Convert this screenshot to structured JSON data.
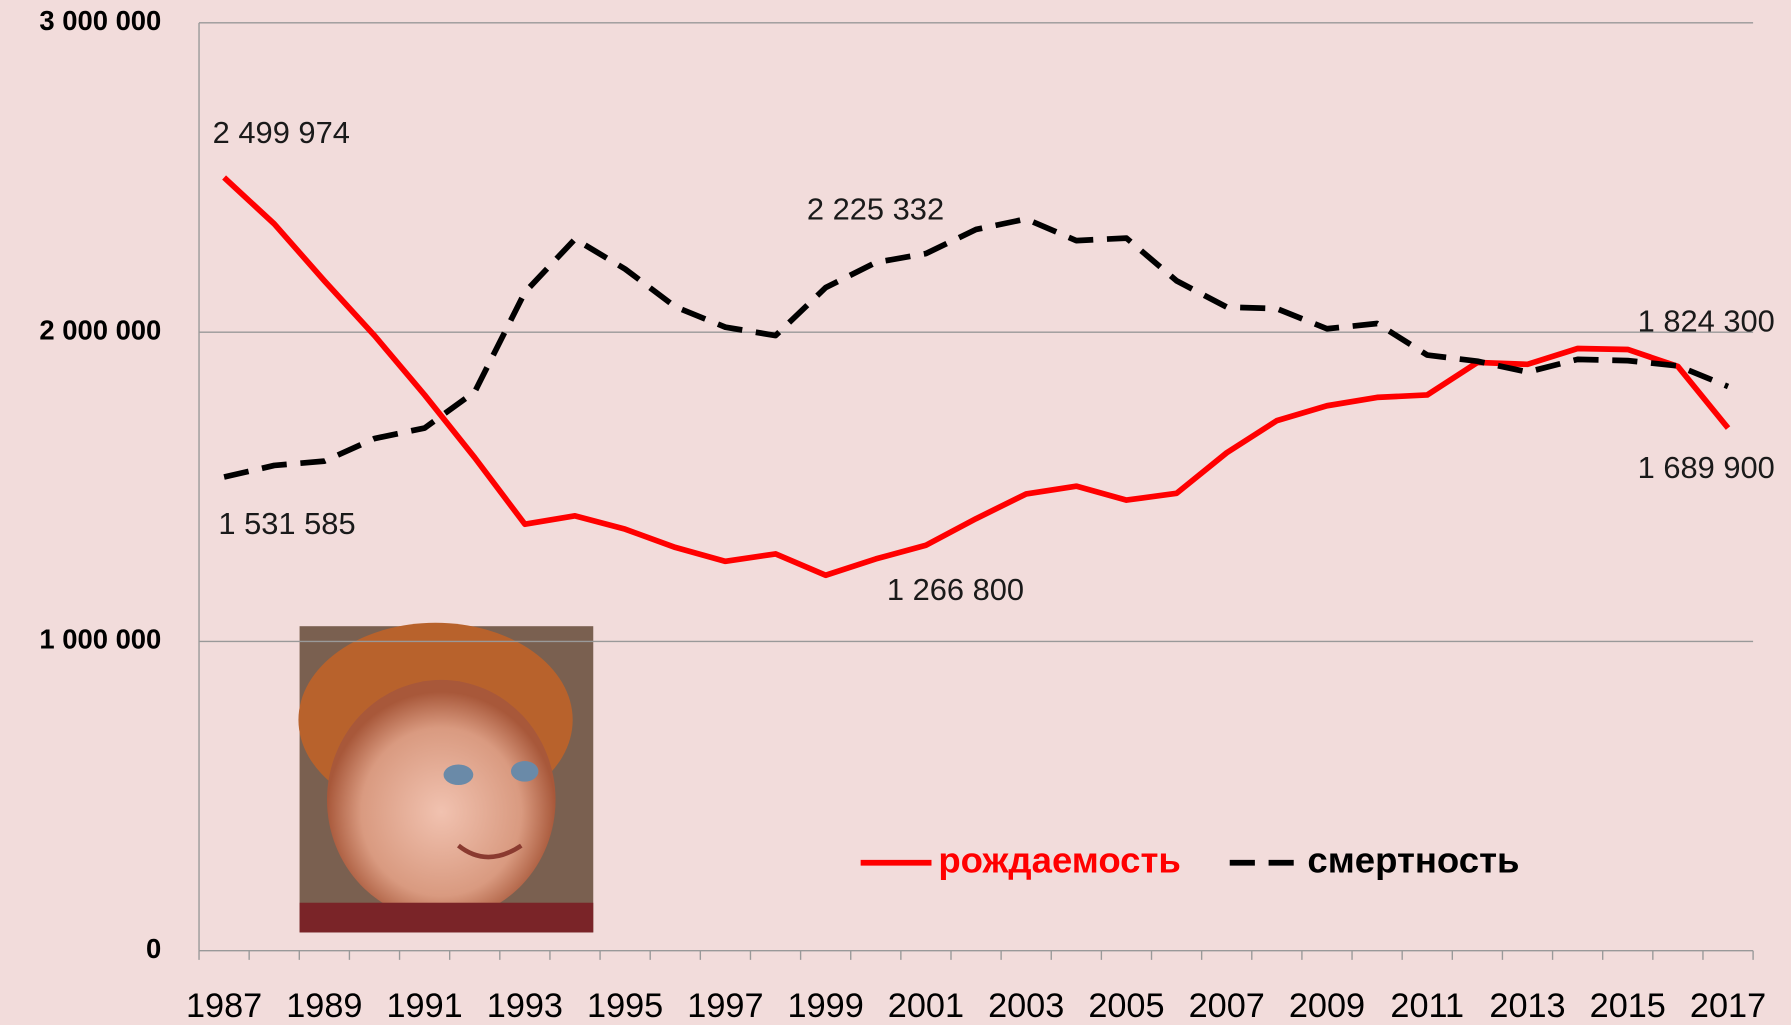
{
  "chart_data": {
    "type": "line",
    "categories": [
      "1987",
      null,
      "1989",
      null,
      "1991",
      null,
      "1993",
      null,
      "1995",
      null,
      "1997",
      null,
      "1999",
      null,
      "2001",
      null,
      "2003",
      null,
      "2005",
      null,
      "2007",
      null,
      "2009",
      null,
      "2011",
      null,
      "2013",
      null,
      "2015",
      null,
      "2017"
    ],
    "series": [
      {
        "name": "рождаемость",
        "color": "#ff0000",
        "dashed": false,
        "values": [
          2499974,
          2350000,
          2166000,
          1989000,
          1797000,
          1594000,
          1379000,
          1406000,
          1363000,
          1304000,
          1259000,
          1283000,
          1214000,
          1266800,
          1311000,
          1397000,
          1477000,
          1502000,
          1457000,
          1479000,
          1610000,
          1714000,
          1762000,
          1789000,
          1797000,
          1902000,
          1896000,
          1947000,
          1944000,
          1889000,
          1689900
        ],
        "value_labels": [
          "2 499 974",
          null,
          null,
          null,
          null,
          null,
          null,
          null,
          null,
          null,
          null,
          null,
          null,
          "1 266 800",
          null,
          null,
          null,
          null,
          null,
          null,
          null,
          null,
          null,
          null,
          null,
          null,
          null,
          null,
          null,
          null,
          "1 689 900"
        ]
      },
      {
        "name": "смертность",
        "color": "#000000",
        "dashed": true,
        "values": [
          1531585,
          1569000,
          1583000,
          1656000,
          1690000,
          1807000,
          2129000,
          2301000,
          2204000,
          2082000,
          2016000,
          1989000,
          2144000,
          2225332,
          2254000,
          2332000,
          2366000,
          2296000,
          2304000,
          2166000,
          2081000,
          2076000,
          2011000,
          2028000,
          1926000,
          1906000,
          1871000,
          1912000,
          1908000,
          1891000,
          1824300
        ],
        "value_labels": [
          "1 531 585",
          null,
          null,
          null,
          null,
          null,
          null,
          null,
          null,
          null,
          null,
          null,
          null,
          "2 225 332",
          null,
          null,
          null,
          null,
          null,
          null,
          null,
          null,
          null,
          null,
          null,
          null,
          null,
          null,
          null,
          null,
          "1 824 300"
        ]
      }
    ],
    "ylim": [
      0,
      3000000
    ],
    "yticks": [
      0,
      {
        "value": 1000000,
        "label": "1 000 000"
      },
      {
        "value": 2000000,
        "label": "2 000 000"
      },
      {
        "value": 3000000,
        "label": "3 000 000"
      }
    ],
    "grid": true,
    "legend": "bottom"
  }
}
